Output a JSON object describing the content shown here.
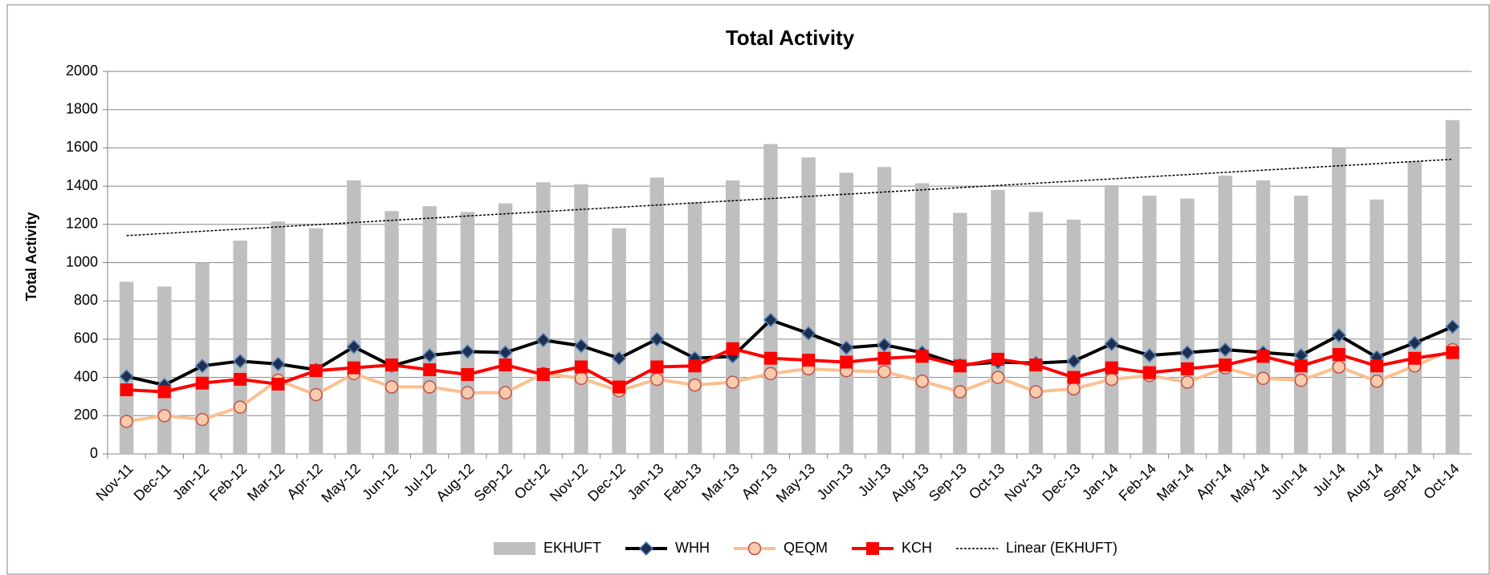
{
  "chart_data": {
    "type": "bar-line",
    "title": "Total Activity",
    "y_label": "Total Activity",
    "categories": [
      "Nov-11",
      "Dec-11",
      "Jan-12",
      "Feb-12",
      "Mar-12",
      "Apr-12",
      "May-12",
      "Jun-12",
      "Jul-12",
      "Aug-12",
      "Sep-12",
      "Oct-12",
      "Nov-12",
      "Dec-12",
      "Jan-13",
      "Feb-13",
      "Mar-13",
      "Apr-13",
      "May-13",
      "Jun-13",
      "Jul-13",
      "Aug-13",
      "Sep-13",
      "Oct-13",
      "Nov-13",
      "Dec-13",
      "Jan-14",
      "Feb-14",
      "Mar-14",
      "Apr-14",
      "May-14",
      "Jun-14",
      "Jul-14",
      "Aug-14",
      "Sep-14",
      "Oct-14"
    ],
    "series": [
      {
        "name": "EKHUFT",
        "type": "bar",
        "color": "#bfbfbf",
        "values": [
          900,
          875,
          1000,
          1115,
          1215,
          1180,
          1430,
          1270,
          1295,
          1265,
          1310,
          1420,
          1410,
          1180,
          1445,
          1315,
          1430,
          1620,
          1550,
          1470,
          1500,
          1415,
          1260,
          1380,
          1265,
          1225,
          1405,
          1350,
          1335,
          1455,
          1430,
          1350,
          1600,
          1330,
          1530,
          1745
        ]
      },
      {
        "name": "WHH",
        "type": "line",
        "marker": "diamond",
        "color": "#000000",
        "values": [
          405,
          360,
          460,
          485,
          470,
          440,
          560,
          460,
          515,
          535,
          530,
          595,
          565,
          500,
          600,
          500,
          510,
          700,
          630,
          555,
          570,
          530,
          465,
          480,
          475,
          485,
          575,
          515,
          530,
          545,
          530,
          515,
          620,
          505,
          580,
          665
        ]
      },
      {
        "name": "QEQM",
        "type": "line",
        "marker": "circle",
        "color": "#fac090",
        "values": [
          170,
          200,
          180,
          245,
          385,
          310,
          420,
          350,
          350,
          320,
          320,
          420,
          395,
          330,
          390,
          360,
          375,
          420,
          445,
          435,
          430,
          380,
          325,
          400,
          325,
          340,
          390,
          410,
          375,
          450,
          395,
          385,
          455,
          380,
          460,
          545
        ]
      },
      {
        "name": "KCH",
        "type": "line",
        "marker": "square",
        "color": "#ff0000",
        "values": [
          335,
          325,
          370,
          390,
          365,
          435,
          450,
          465,
          440,
          415,
          465,
          415,
          455,
          350,
          455,
          460,
          550,
          500,
          490,
          480,
          500,
          510,
          460,
          495,
          465,
          400,
          450,
          425,
          445,
          465,
          510,
          460,
          520,
          460,
          500,
          530
        ]
      }
    ],
    "trendline": {
      "name": "Linear (EKHUFT)",
      "kind": "linear",
      "color": "#000000"
    },
    "ylim": [
      0,
      2000
    ],
    "yticks": [
      0,
      200,
      400,
      600,
      800,
      1000,
      1200,
      1400,
      1600,
      1800,
      2000
    ],
    "grid": true,
    "legend": "bottom"
  }
}
